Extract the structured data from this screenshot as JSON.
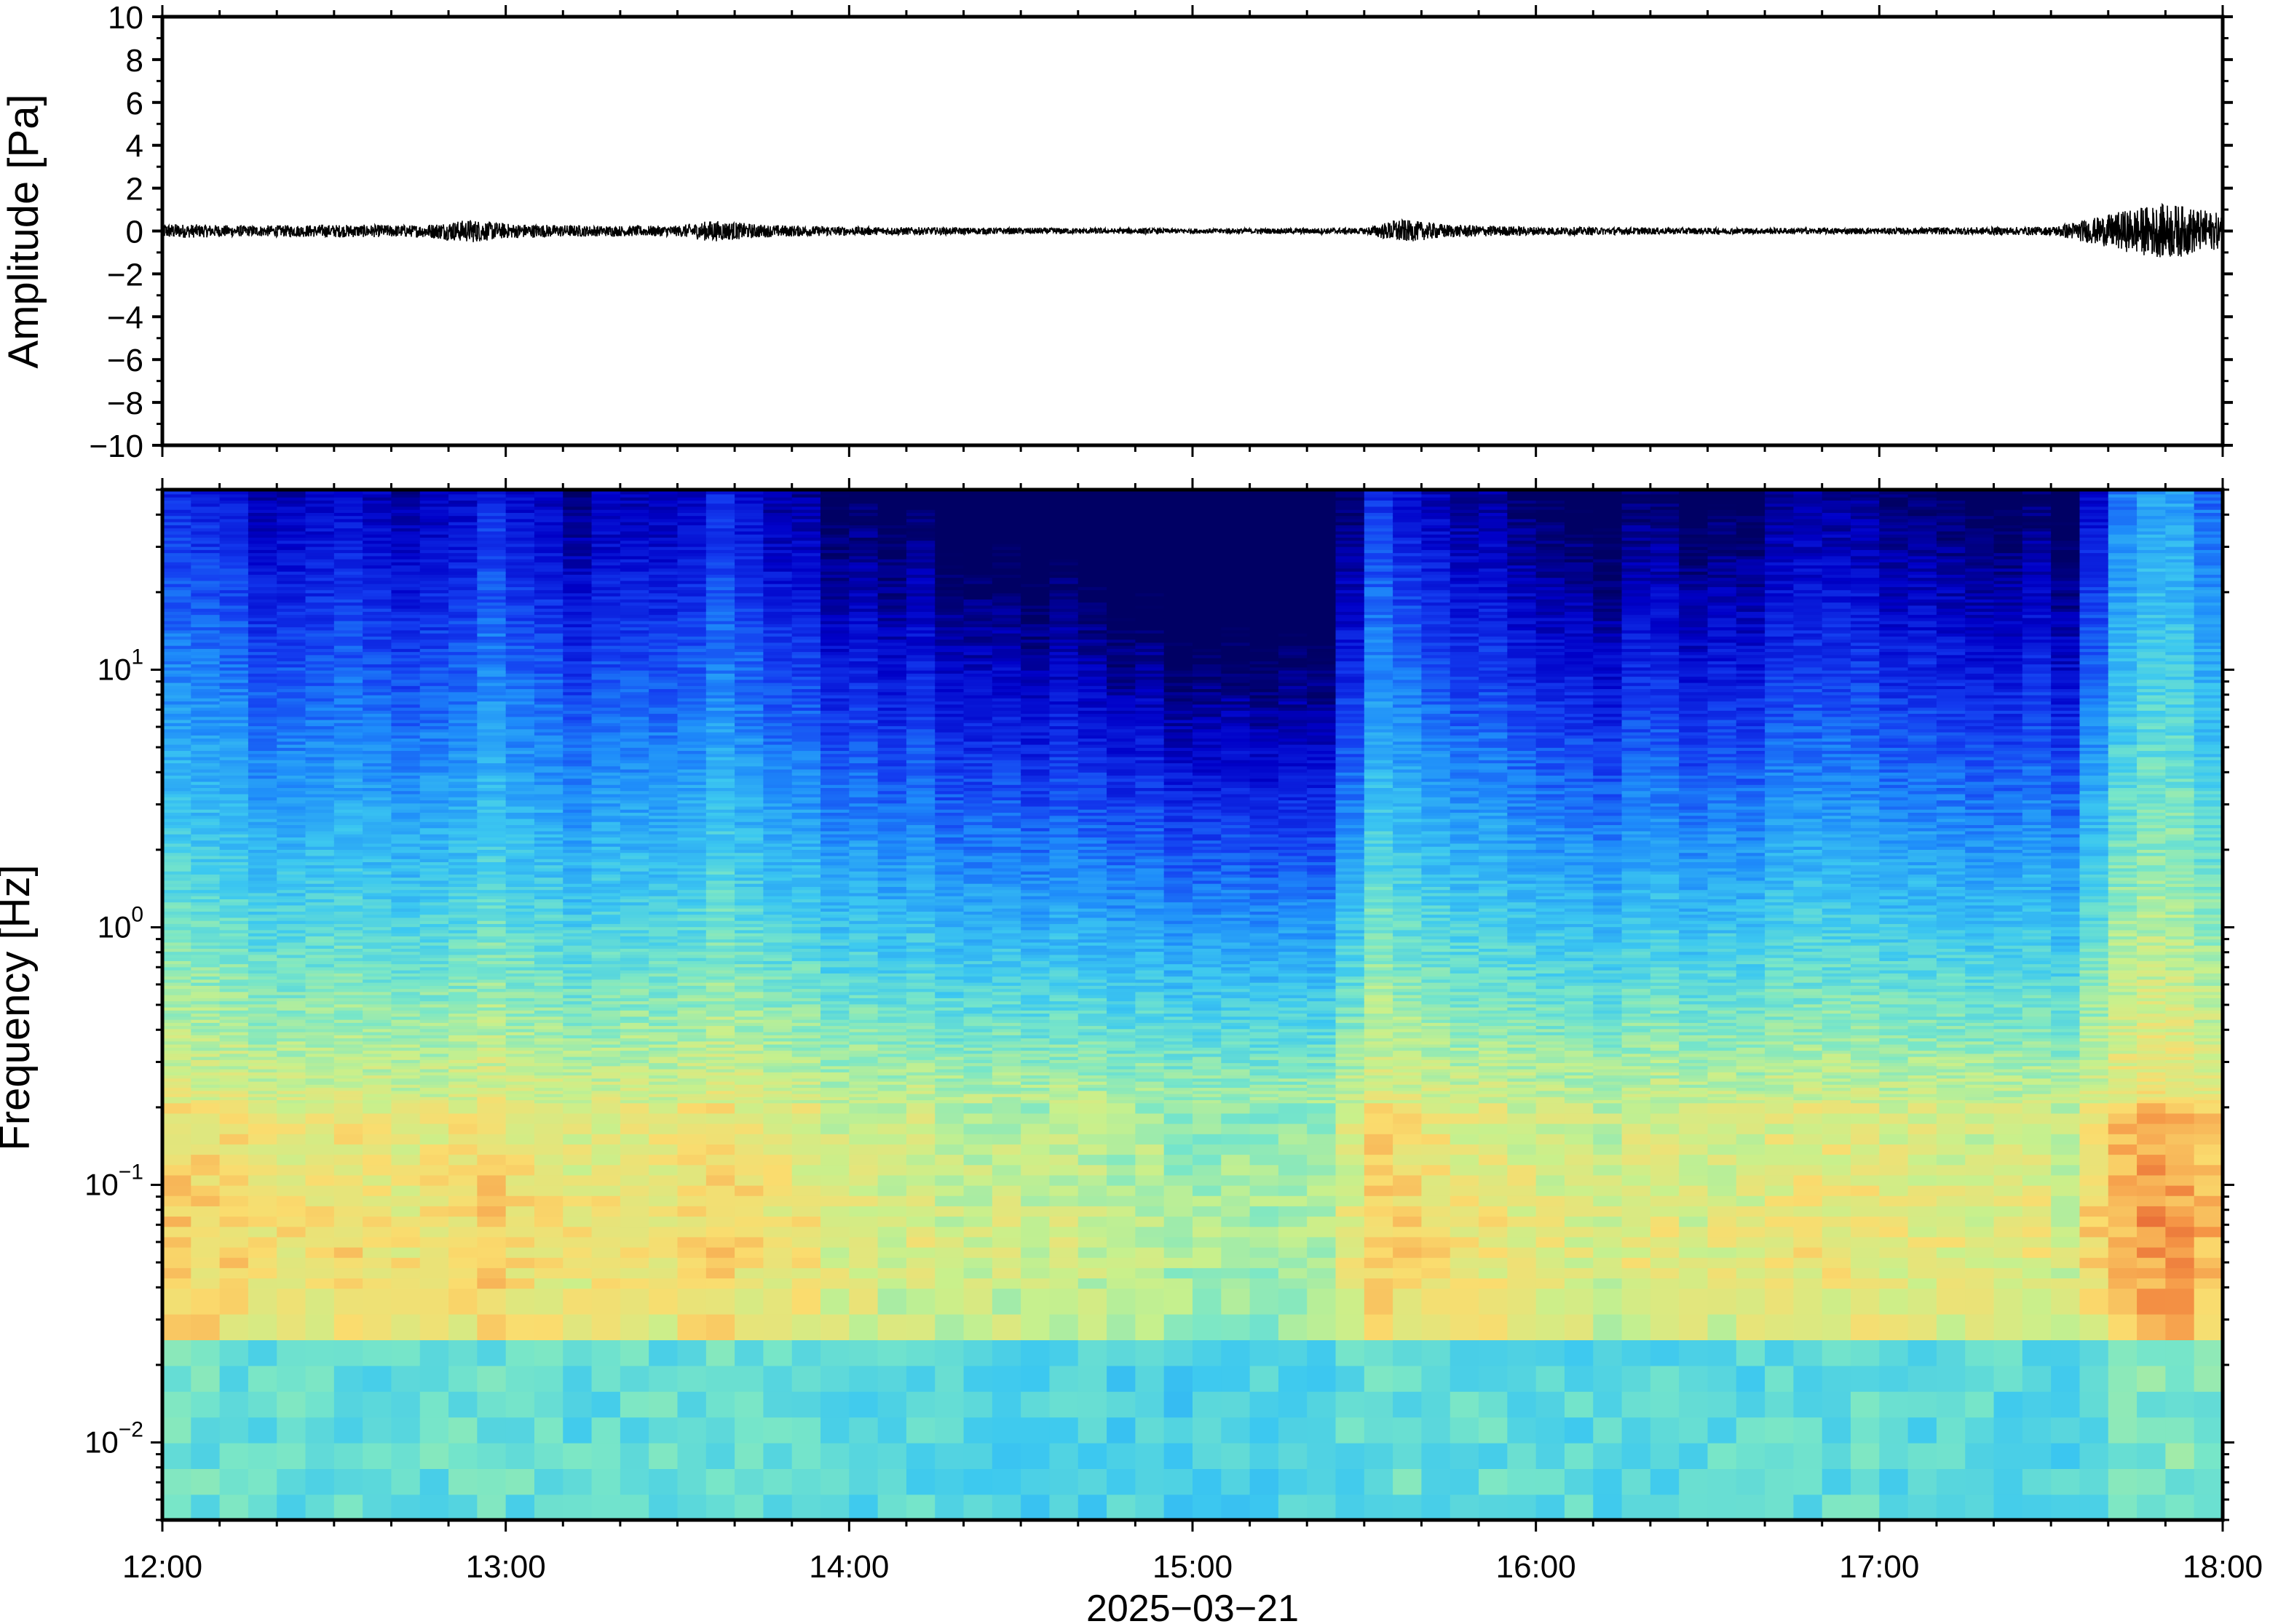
{
  "chart_data": [
    {
      "type": "line",
      "ylabel": "Amplitude [Pa]",
      "ylim": [
        -10,
        10
      ],
      "yticks": [
        "10",
        "8",
        "6",
        "4",
        "2",
        "0",
        "−2",
        "−4",
        "−6",
        "−8",
        "−10"
      ],
      "ytick_values": [
        10,
        8,
        6,
        4,
        2,
        0,
        -2,
        -4,
        -6,
        -8,
        -10
      ],
      "xlim": [
        "12:00",
        "18:00"
      ],
      "series": [
        {
          "color": "#000000",
          "envelope_x_hours": [
            12.0,
            12.25,
            12.5,
            12.75,
            12.9,
            13.0,
            13.25,
            13.5,
            13.6,
            13.75,
            14.0,
            14.5,
            15.0,
            15.5,
            15.6,
            15.75,
            16.0,
            16.5,
            17.0,
            17.5,
            17.65,
            17.75,
            17.85,
            18.0
          ],
          "envelope_amplitude": [
            0.35,
            0.25,
            0.3,
            0.28,
            0.55,
            0.35,
            0.25,
            0.25,
            0.5,
            0.3,
            0.2,
            0.15,
            0.12,
            0.15,
            0.55,
            0.3,
            0.2,
            0.15,
            0.15,
            0.2,
            0.7,
            1.1,
            1.3,
            0.8
          ]
        }
      ]
    },
    {
      "type": "heatmap",
      "ylabel": "Frequency [Hz]",
      "xlabel": "2025−03−21",
      "yscale": "log",
      "ylim": [
        0.005,
        50
      ],
      "yticks": [
        {
          "base": "10",
          "exp": "−2"
        },
        {
          "base": "10",
          "exp": "−1"
        },
        {
          "base": "10",
          "exp": "0"
        },
        {
          "base": "10",
          "exp": "1"
        }
      ],
      "ytick_values": [
        0.01,
        0.1,
        1,
        10
      ],
      "xticks": [
        "12:00",
        "13:00",
        "14:00",
        "15:00",
        "16:00",
        "17:00",
        "18:00"
      ],
      "xtick_values": [
        12,
        13,
        14,
        15,
        16,
        17,
        18
      ],
      "colormap": "jet",
      "column_activity_hours": [
        12.0,
        12.2,
        12.4,
        12.7,
        12.95,
        13.2,
        13.4,
        13.65,
        13.9,
        14.2,
        14.5,
        14.8,
        15.0,
        15.2,
        15.4,
        15.55,
        15.7,
        15.9,
        16.2,
        16.5,
        16.8,
        17.0,
        17.3,
        17.55,
        17.7,
        17.85,
        18.0
      ],
      "column_activity_level": [
        0.8,
        0.65,
        0.6,
        0.55,
        0.75,
        0.55,
        0.6,
        0.7,
        0.45,
        0.35,
        0.25,
        0.15,
        0.05,
        0.05,
        0.1,
        0.75,
        0.55,
        0.45,
        0.35,
        0.4,
        0.45,
        0.45,
        0.4,
        0.35,
        0.95,
        1.0,
        0.9
      ]
    }
  ]
}
